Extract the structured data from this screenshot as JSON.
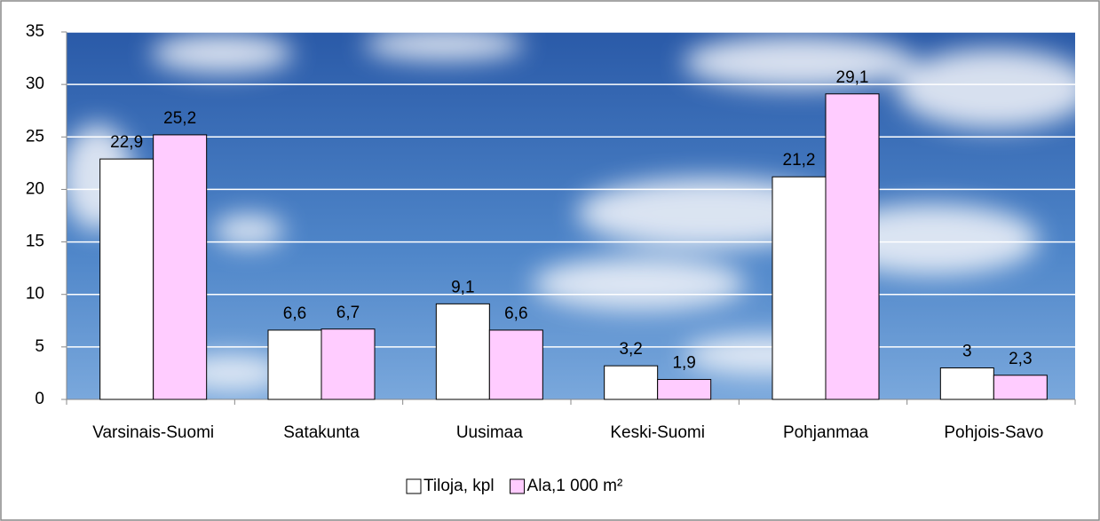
{
  "chart_data": {
    "type": "bar",
    "categories": [
      "Varsinais-Suomi",
      "Satakunta",
      "Uusimaa",
      "Keski-Suomi",
      "Pohjanmaa",
      "Pohjois-Savo"
    ],
    "series": [
      {
        "name": "Tiloja, kpl",
        "color": "#ffffff",
        "values": [
          22.9,
          6.6,
          9.1,
          3.2,
          21.2,
          3
        ],
        "value_labels": [
          "22,9",
          "6,6",
          "9,1",
          "3,2",
          "21,2",
          "3"
        ]
      },
      {
        "name": "Ala,1 000 m²",
        "color": "#ffccff",
        "values": [
          25.2,
          6.7,
          6.6,
          1.9,
          29.1,
          2.3
        ],
        "value_labels": [
          "25,2",
          "6,7",
          "6,6",
          "1,9",
          "29,1",
          "2,3"
        ]
      }
    ],
    "ylim": [
      0,
      35
    ],
    "yticks": [
      0,
      5,
      10,
      15,
      20,
      25,
      30,
      35
    ],
    "grid": true,
    "legend": "bottom"
  }
}
